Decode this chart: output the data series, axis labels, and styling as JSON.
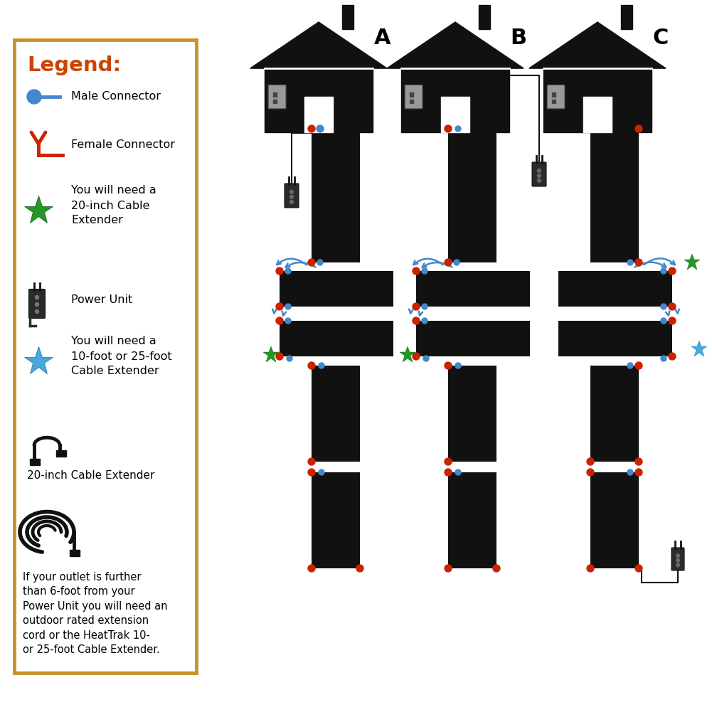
{
  "bg_color": "#ffffff",
  "legend_border_color": "#c8922a",
  "legend_title": "Legend:",
  "legend_title_color": "#cc4400",
  "house_labels": [
    "A",
    "B",
    "C"
  ],
  "mat_color": "#111111",
  "connector_blue": "#4488cc",
  "connector_red": "#cc2200",
  "star_green": "#229922",
  "star_blue": "#44aadd",
  "arrow_blue": "#4488cc",
  "power_unit_color": "#333333"
}
